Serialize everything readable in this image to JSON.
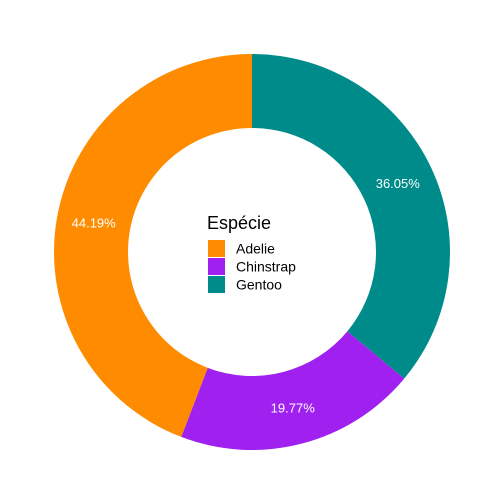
{
  "chart_data": {
    "type": "pie",
    "variant": "donut",
    "title": "",
    "legend": {
      "title": "Espécie",
      "placement": "center"
    },
    "slices": [
      {
        "name": "Adelie",
        "value": 44.19,
        "label": "44.19%",
        "color": "#FF8C00"
      },
      {
        "name": "Chinstrap",
        "value": 19.77,
        "label": "19.77%",
        "color": "#A020F0"
      },
      {
        "name": "Gentoo",
        "value": 36.05,
        "label": "36.05%",
        "color": "#008B8B"
      }
    ],
    "draw_order": [
      "Gentoo",
      "Chinstrap",
      "Adelie"
    ],
    "start": "top",
    "direction": "clockwise"
  }
}
